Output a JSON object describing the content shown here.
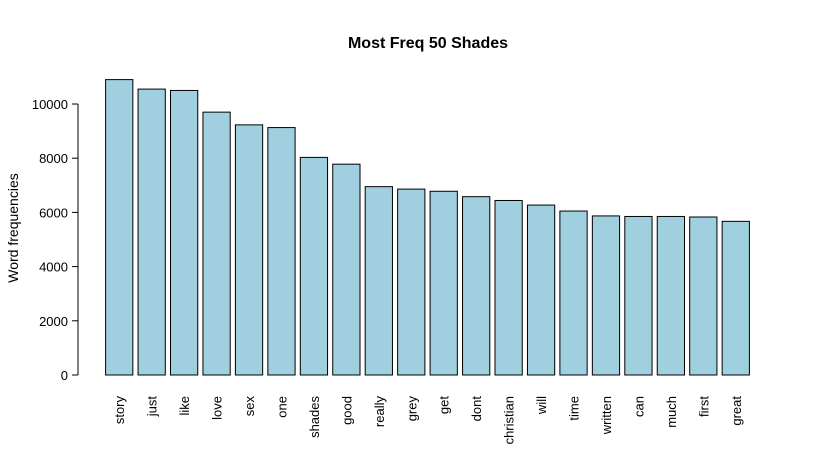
{
  "chart_data": {
    "type": "bar",
    "title": "Most Freq 50 Shades",
    "xlabel": "",
    "ylabel": "Word frequencies",
    "categories": [
      "story",
      "just",
      "like",
      "love",
      "sex",
      "one",
      "shades",
      "good",
      "really",
      "grey",
      "get",
      "dont",
      "christian",
      "will",
      "time",
      "written",
      "can",
      "much",
      "first",
      "great"
    ],
    "values": [
      10900,
      10550,
      10500,
      9700,
      9230,
      9130,
      8030,
      7780,
      6950,
      6860,
      6780,
      6580,
      6440,
      6270,
      6050,
      5870,
      5850,
      5850,
      5830,
      5670
    ],
    "ylim": [
      0,
      11000
    ],
    "yticks": [
      0,
      2000,
      4000,
      6000,
      8000,
      10000
    ],
    "bar_color": "#a0cfe0",
    "grid": false
  }
}
